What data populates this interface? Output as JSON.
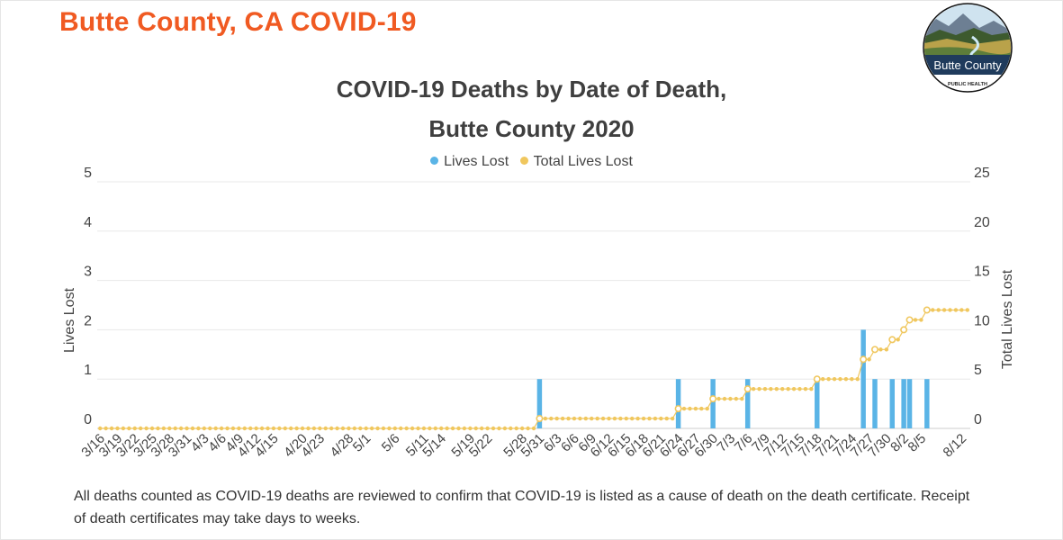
{
  "header": {
    "title": "Butte County, CA COVID-19"
  },
  "logo": {
    "line1": "Butte County",
    "line2": "PUBLIC HEALTH"
  },
  "chart_data": {
    "type": "bar",
    "title": "COVID-19 Deaths by Date of Death,",
    "subtitle": "Butte County 2020",
    "legend": [
      "Lives Lost",
      "Total Lives Lost"
    ],
    "ylabel": "Lives Lost",
    "y2label": "Total Lives Lost",
    "ylim": [
      0,
      5
    ],
    "y2lim": [
      0,
      25
    ],
    "yticks": [
      0,
      1,
      2,
      3,
      4,
      5
    ],
    "y2ticks": [
      0,
      5,
      10,
      15,
      20,
      25
    ],
    "start": "3/16",
    "end": "8/13",
    "tick_labels": [
      "3/16",
      "3/19",
      "3/22",
      "3/25",
      "3/28",
      "3/31",
      "4/3",
      "4/6",
      "4/9",
      "4/12",
      "4/15",
      "4/20",
      "4/23",
      "4/28",
      "5/1",
      "5/6",
      "5/11",
      "5/14",
      "5/19",
      "5/22",
      "5/28",
      "5/31",
      "6/3",
      "6/6",
      "6/9",
      "6/12",
      "6/15",
      "6/18",
      "6/21",
      "6/24",
      "6/27",
      "6/30",
      "7/3",
      "7/6",
      "7/9",
      "7/12",
      "7/15",
      "7/18",
      "7/21",
      "7/24",
      "7/27",
      "7/30",
      "8/2",
      "8/5",
      "8/12"
    ],
    "series": [
      {
        "name": "Lives Lost",
        "color": "#5ab4e6",
        "points": [
          {
            "date": "5/31",
            "value": 1
          },
          {
            "date": "6/24",
            "value": 1
          },
          {
            "date": "6/30",
            "value": 1
          },
          {
            "date": "7/6",
            "value": 1
          },
          {
            "date": "7/18",
            "value": 1
          },
          {
            "date": "7/26",
            "value": 2
          },
          {
            "date": "7/28",
            "value": 1
          },
          {
            "date": "7/31",
            "value": 1
          },
          {
            "date": "8/2",
            "value": 1
          },
          {
            "date": "8/3",
            "value": 1
          },
          {
            "date": "8/6",
            "value": 1
          }
        ]
      },
      {
        "name": "Total Lives Lost",
        "color": "#f0c75e",
        "cumulative": true
      }
    ]
  },
  "footnote": "All deaths counted as COVID-19 deaths are reviewed to confirm that COVID-19 is listed as a cause of death on the death certificate. Receipt of death certificates may take days to weeks."
}
